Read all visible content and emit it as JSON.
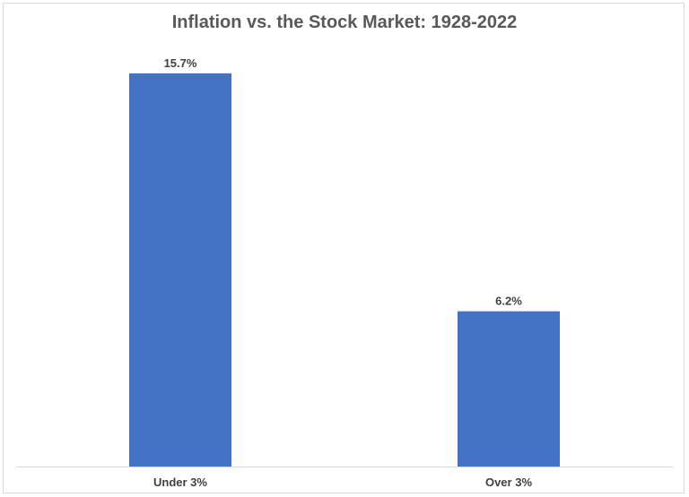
{
  "chart_data": {
    "type": "bar",
    "title": "Inflation vs. the Stock Market: 1928-2022",
    "xlabel": "",
    "ylabel": "",
    "categories": [
      "Under 3%",
      "Over 3%"
    ],
    "values": [
      15.7,
      6.2
    ],
    "data_labels": [
      "15.7%",
      "6.2%"
    ],
    "ylim": [
      0,
      17.2
    ],
    "grid": false,
    "legend": "none",
    "bar_color": "#4472C4"
  }
}
